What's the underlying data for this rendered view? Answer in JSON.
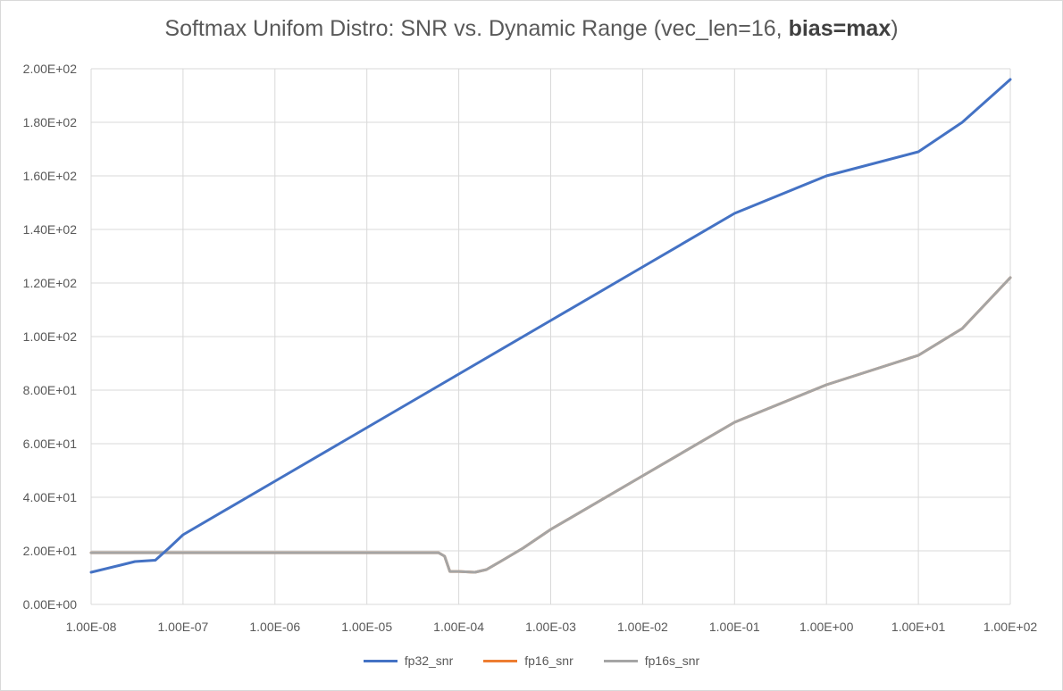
{
  "chart_data": {
    "type": "line",
    "title": "Softmax Unifom Distro: SNR vs. Dynamic Range (vec_len=16, ",
    "title_bold": "bias=max",
    "title_end": ")",
    "x_scale": "log",
    "xlim": [
      1e-08,
      100
    ],
    "ylim": [
      0,
      200
    ],
    "grid": true,
    "legend_position": "bottom",
    "x_ticks": [
      "1.00E-08",
      "1.00E-07",
      "1.00E-06",
      "1.00E-05",
      "1.00E-04",
      "1.00E-03",
      "1.00E-02",
      "1.00E-01",
      "1.00E+00",
      "1.00E+01",
      "1.00E+02"
    ],
    "y_ticks": [
      "0.00E+00",
      "2.00E+01",
      "4.00E+01",
      "6.00E+01",
      "8.00E+01",
      "1.00E+02",
      "1.20E+02",
      "1.40E+02",
      "1.60E+02",
      "1.80E+02",
      "2.00E+02"
    ],
    "series": [
      {
        "name": "fp32_snr",
        "color": "#4472c4",
        "x": [
          1e-08,
          2e-08,
          3e-08,
          5e-08,
          7e-08,
          1e-07,
          1e-06,
          1e-05,
          0.0001,
          0.001,
          0.01,
          0.1,
          1,
          10,
          30,
          100
        ],
        "y": [
          12,
          14.5,
          16,
          16.5,
          21,
          26,
          46,
          66,
          86,
          106,
          126,
          146,
          160,
          169,
          180,
          196
        ]
      },
      {
        "name": "fp16_snr",
        "color": "#ed7d31",
        "x": [
          1e-08,
          1e-07,
          1e-06,
          1e-05,
          5e-05,
          6e-05,
          7e-05,
          8e-05,
          0.0001,
          0.00015,
          0.0002,
          0.0003,
          0.0005,
          0.001,
          0.01,
          0.1,
          1,
          10,
          30,
          100
        ],
        "y": [
          19.3,
          19.3,
          19.3,
          19.3,
          19.3,
          19.3,
          18,
          12.3,
          12.3,
          12,
          13,
          16.5,
          21,
          28,
          48,
          68,
          82,
          93,
          103,
          122
        ]
      },
      {
        "name": "fp16s_snr",
        "color": "#a5a5a5",
        "x": [
          1e-08,
          1e-07,
          1e-06,
          1e-05,
          5e-05,
          6e-05,
          7e-05,
          8e-05,
          0.0001,
          0.00015,
          0.0002,
          0.0003,
          0.0005,
          0.001,
          0.01,
          0.1,
          1,
          10,
          30,
          100
        ],
        "y": [
          19.3,
          19.3,
          19.3,
          19.3,
          19.3,
          19.3,
          18,
          12.3,
          12.3,
          12,
          13,
          16.5,
          21,
          28,
          48,
          68,
          82,
          93,
          103,
          122
        ]
      }
    ]
  }
}
